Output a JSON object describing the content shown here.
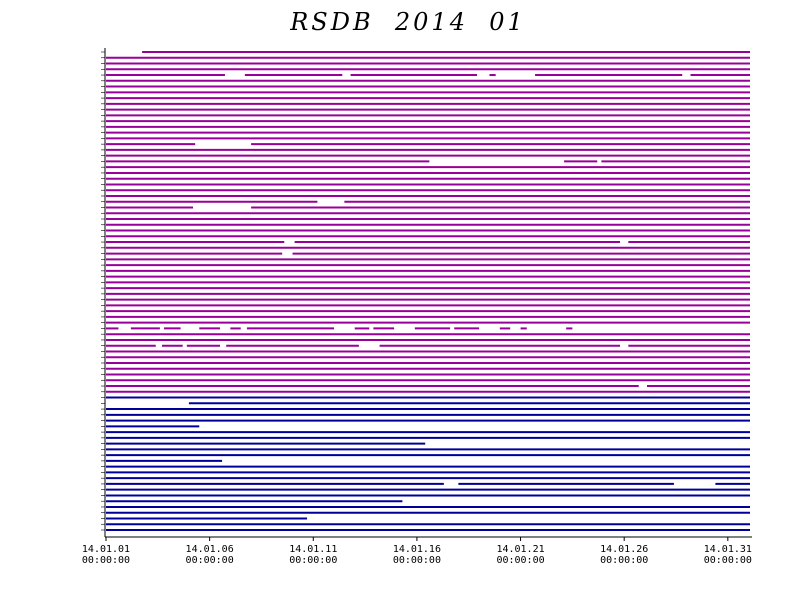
{
  "chart_data": {
    "type": "availability",
    "title": "RSDB  2014  01",
    "xlim": [
      1,
      32.07
    ],
    "xticks": [
      {
        "value": 1,
        "label": "14.01.01\n00:00:00"
      },
      {
        "value": 6,
        "label": "14.01.06\n00:00:00"
      },
      {
        "value": 11,
        "label": "14.01.11\n00:00:00"
      },
      {
        "value": 16,
        "label": "14.01.16\n00:00:00"
      },
      {
        "value": 21,
        "label": "14.01.21\n00:00:00"
      },
      {
        "value": 26,
        "label": "14.01.26\n00:00:00"
      },
      {
        "value": 31,
        "label": "14.01.31\n00:00:00"
      }
    ],
    "series": [
      {
        "color": "#990099",
        "rows": [
          [
            [
              2.74,
              32.07
            ]
          ],
          [
            [
              1,
              32.07
            ]
          ],
          [
            [
              1,
              32.07
            ]
          ],
          [
            [
              1,
              32.07
            ]
          ],
          [
            [
              1,
              6.74
            ],
            [
              7.7,
              12.4
            ],
            [
              12.8,
              18.9
            ],
            [
              19.5,
              19.8
            ],
            [
              21.7,
              28.8
            ],
            [
              29.2,
              32.07
            ]
          ],
          [
            [
              1,
              32.07
            ]
          ],
          [
            [
              1,
              32.07
            ]
          ],
          [
            [
              1,
              32.07
            ]
          ],
          [
            [
              1,
              32.07
            ]
          ],
          [
            [
              1,
              32.07
            ]
          ],
          [
            [
              1,
              32.07
            ]
          ],
          [
            [
              1,
              32.07
            ]
          ],
          [
            [
              1,
              32.07
            ]
          ],
          [
            [
              1,
              32.07
            ]
          ],
          [
            [
              1,
              32.07
            ]
          ],
          [
            [
              1,
              32.07
            ]
          ],
          [
            [
              1,
              5.3
            ],
            [
              8,
              32.07
            ]
          ],
          [
            [
              1,
              32.07
            ]
          ],
          [
            [
              1,
              32.07
            ]
          ],
          [
            [
              1,
              16.6
            ],
            [
              23.1,
              24.7
            ],
            [
              24.9,
              32.07
            ]
          ],
          [
            [
              1,
              32.07
            ]
          ],
          [
            [
              1,
              32.07
            ]
          ],
          [
            [
              1,
              32.07
            ]
          ],
          [
            [
              1,
              32.07
            ]
          ],
          [
            [
              1,
              32.07
            ]
          ],
          [
            [
              1,
              32.07
            ]
          ],
          [
            [
              1,
              11.2
            ],
            [
              12.5,
              32.07
            ]
          ],
          [
            [
              1,
              5.2
            ],
            [
              8,
              32.07
            ]
          ],
          [
            [
              1,
              32.07
            ]
          ],
          [
            [
              1,
              32.07
            ]
          ],
          [
            [
              1,
              32.07
            ]
          ],
          [
            [
              1,
              32.07
            ]
          ],
          [
            [
              1,
              32.07
            ]
          ],
          [
            [
              1,
              9.6
            ],
            [
              10.1,
              25.8
            ],
            [
              26.2,
              32.07
            ]
          ],
          [
            [
              1,
              32.07
            ]
          ],
          [
            [
              1,
              9.5
            ],
            [
              10,
              32.07
            ]
          ],
          [
            [
              1,
              32.07
            ]
          ],
          [
            [
              1,
              32.07
            ]
          ],
          [
            [
              1,
              32.07
            ]
          ],
          [
            [
              1,
              32.07
            ]
          ],
          [
            [
              1,
              32.07
            ]
          ],
          [
            [
              1,
              32.07
            ]
          ],
          [
            [
              1,
              32.07
            ]
          ],
          [
            [
              1,
              32.07
            ]
          ],
          [
            [
              1,
              32.07
            ]
          ],
          [
            [
              1,
              32.07
            ]
          ],
          [
            [
              1,
              32.07
            ]
          ],
          [
            [
              1,
              32.07
            ]
          ],
          [
            [
              1,
              1.6
            ],
            [
              2.2,
              3.6
            ],
            [
              3.8,
              4.6
            ],
            [
              5.5,
              6.5
            ],
            [
              7,
              7.5
            ],
            [
              7.8,
              12
            ],
            [
              13,
              13.7
            ],
            [
              13.9,
              14.9
            ],
            [
              15.9,
              17.6
            ],
            [
              17.8,
              19
            ],
            [
              20,
              20.5
            ],
            [
              21,
              21.3
            ],
            [
              23.2,
              23.5
            ]
          ],
          [
            [
              1,
              32.07
            ]
          ],
          [
            [
              1,
              32.07
            ]
          ],
          [
            [
              1,
              3.4
            ],
            [
              3.7,
              4.7
            ],
            [
              4.9,
              6.5
            ],
            [
              6.8,
              13.2
            ],
            [
              14.2,
              25.8
            ],
            [
              26.2,
              32.07
            ]
          ],
          [
            [
              1,
              32.07
            ]
          ],
          [
            [
              1,
              32.07
            ]
          ],
          [
            [
              1,
              32.07
            ]
          ],
          [
            [
              1,
              32.07
            ]
          ],
          [
            [
              1,
              32.07
            ]
          ],
          [
            [
              1,
              32.07
            ]
          ],
          [
            [
              1,
              26.7
            ],
            [
              27.1,
              32.07
            ]
          ],
          [
            [
              1,
              32.07
            ]
          ]
        ]
      },
      {
        "color": "#000099",
        "rows": [
          [
            [
              1,
              32.07
            ]
          ],
          [
            [
              5,
              32.07
            ]
          ],
          [
            [
              1,
              32.07
            ]
          ],
          [
            [
              1,
              32.07
            ]
          ],
          [
            [
              1,
              32.07
            ]
          ],
          [
            [
              1,
              5.5
            ]
          ],
          [
            [
              1,
              32.07
            ]
          ],
          [
            [
              1,
              32.07
            ]
          ],
          [
            [
              1,
              16.4
            ]
          ],
          [
            [
              1,
              32.07
            ]
          ],
          [
            [
              1,
              32.07
            ]
          ],
          [
            [
              1,
              6.6
            ]
          ],
          [
            [
              1,
              32.07
            ]
          ],
          [
            [
              1,
              32.07
            ]
          ],
          [
            [
              1,
              32.07
            ]
          ],
          [
            [
              1,
              17.3
            ],
            [
              18,
              28.4
            ],
            [
              30.4,
              32.07
            ]
          ],
          [
            [
              1,
              32.07
            ]
          ],
          [
            [
              1,
              32.07
            ]
          ],
          [
            [
              1,
              15.3
            ]
          ],
          [
            [
              1,
              32.07
            ]
          ],
          [
            [
              1,
              32.07
            ]
          ],
          [
            [
              1,
              10.7
            ]
          ],
          [
            [
              1,
              32.07
            ]
          ],
          [
            [
              1,
              32.07
            ]
          ]
        ]
      }
    ]
  }
}
